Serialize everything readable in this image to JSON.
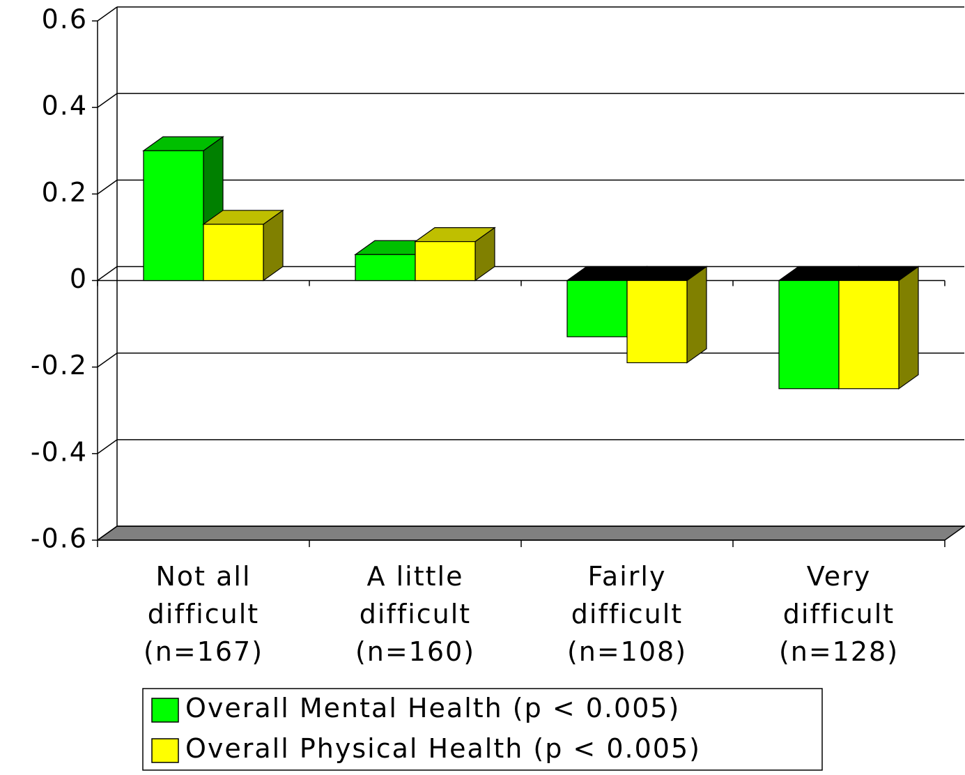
{
  "chart_data": {
    "type": "bar3d",
    "categories": [
      "Not all\ndifficult\n(n=167)",
      "A little\ndifficult\n(n=160)",
      "Fairly\ndifficult\n(n=108)",
      "Very\ndifficult\n(n=128)"
    ],
    "series": [
      {
        "name": "Overall Mental Health (p < 0.005)",
        "color": "#00ff00",
        "values": [
          0.3,
          0.06,
          -0.13,
          -0.25
        ]
      },
      {
        "name": "Overall Physical Health (p < 0.005)",
        "color": "#ffff00",
        "values": [
          0.13,
          0.09,
          -0.19,
          -0.25
        ]
      }
    ],
    "ylim": [
      -0.6,
      0.6
    ],
    "yticks": [
      -0.6,
      -0.4,
      -0.2,
      0,
      0.2,
      0.4,
      0.6
    ],
    "grid": true
  }
}
